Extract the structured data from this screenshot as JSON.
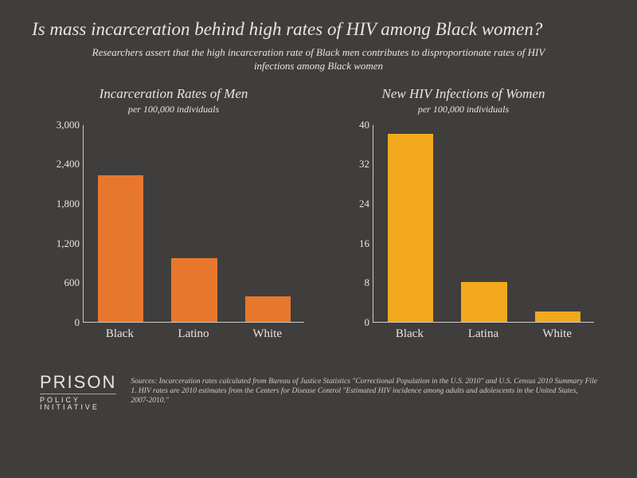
{
  "title": "Is mass incarceration behind high rates of HIV among Black women?",
  "subtitle": "Researchers assert that the high incarceration rate of Black men contributes to disproportionate rates of HIV infections among Black women",
  "background_color": "#403e3c",
  "text_color": "#e8e5df",
  "axis_color": "#cfcac2",
  "charts": [
    {
      "type": "bar",
      "title": "Incarceration Rates of Men",
      "note": "per 100,000 individuals",
      "categories": [
        "Black",
        "Latino",
        "White"
      ],
      "values": [
        2220,
        960,
        380
      ],
      "bar_color": "#e8772e",
      "ylim": [
        0,
        3000
      ],
      "ytick_step": 600,
      "yticks": [
        "0",
        "600",
        "1,200",
        "1,800",
        "2,400",
        "3,000"
      ],
      "bar_width": 0.62
    },
    {
      "type": "bar",
      "title": "New HIV Infections of Women",
      "note": "per 100,000 individuals",
      "categories": [
        "Black",
        "Latina",
        "White"
      ],
      "values": [
        38,
        8,
        2
      ],
      "bar_color": "#f2a91e",
      "ylim": [
        0,
        40
      ],
      "ytick_step": 8,
      "yticks": [
        "0",
        "8",
        "16",
        "24",
        "32",
        "40"
      ],
      "bar_width": 0.62
    }
  ],
  "logo": {
    "top": "PRISON",
    "bottom": "POLICY INITIATIVE"
  },
  "sources": "Sources: Incarceration rates calculated from Bureau of Justice Statistics \"Correctional Population in the U.S. 2010\" and U.S. Census 2010 Summary File 1. HIV rates are 2010 estimates from the Centers for Disease Control \"Estimated HIV incidence among adults and adolescents in the United States, 2007-2010.\""
}
